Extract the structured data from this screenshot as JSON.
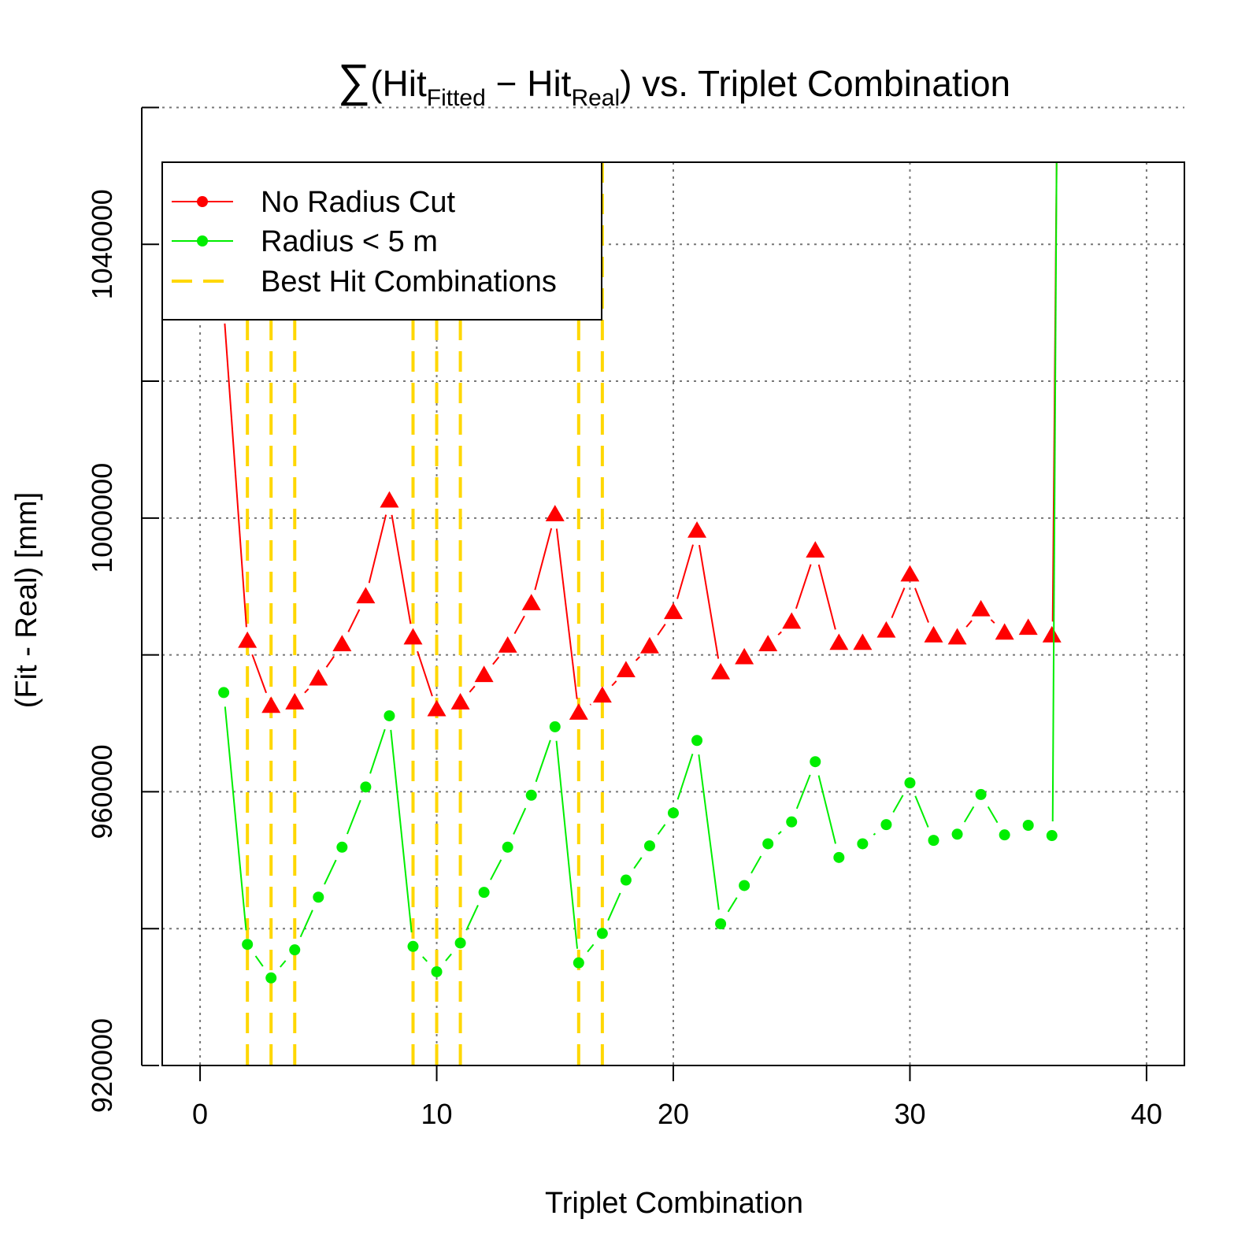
{
  "title": {
    "sigma": "∑",
    "open": "(Hit",
    "sub1": "Fitted",
    "minus": " − Hit",
    "sub2": "Real",
    "close": ") vs. Triplet Combination"
  },
  "chart_data": {
    "type": "line",
    "xlabel": "Triplet Combination",
    "ylabel": "(Fit - Real) [mm]",
    "xlim": [
      -1.6,
      41.6
    ],
    "ylim": [
      920000,
      1052000
    ],
    "x_ticks": [
      0,
      10,
      20,
      30,
      40
    ],
    "x_tick_labels": [
      "0",
      "10",
      "20",
      "30",
      "40"
    ],
    "y_ticks": [
      920000,
      940000,
      960000,
      980000,
      1000000,
      1020000,
      1040000,
      1060000
    ],
    "y_tick_labels": [
      "920000",
      "",
      "960000",
      "",
      "1000000",
      "",
      "1040000",
      ""
    ],
    "grid": true,
    "legend": {
      "position": "top-left",
      "entries": [
        "No Radius Cut",
        "Radius < 5 m",
        "Best Hit Combinations"
      ]
    },
    "x": [
      1,
      2,
      3,
      4,
      5,
      6,
      7,
      8,
      9,
      10,
      11,
      12,
      13,
      14,
      15,
      16,
      17,
      18,
      19,
      20,
      21,
      22,
      23,
      24,
      25,
      26,
      27,
      28,
      29,
      30,
      31,
      32,
      33,
      34,
      35,
      36
    ],
    "series": [
      {
        "name": "No Radius Cut",
        "color": "#ff0000",
        "marker": "triangle",
        "values": [
          1030500,
          982000,
          972500,
          973000,
          976500,
          981500,
          988500,
          1002500,
          982500,
          972000,
          973000,
          977000,
          981300,
          987500,
          1000500,
          971500,
          974000,
          977700,
          981200,
          986200,
          998100,
          977400,
          979600,
          981500,
          984800,
          995200,
          981700,
          981700,
          983500,
          991700,
          982800,
          982500,
          986600,
          983200,
          983900,
          982800
        ]
      },
      {
        "name": "Radius < 5 m",
        "color": "#00ee00",
        "marker": "circle",
        "values": [
          974500,
          937700,
          932800,
          936900,
          944600,
          951900,
          960700,
          971100,
          937400,
          933700,
          937900,
          945300,
          951900,
          959500,
          969500,
          935000,
          939300,
          947100,
          952100,
          956900,
          967500,
          940700,
          946300,
          952400,
          955600,
          964400,
          950400,
          952400,
          955200,
          961300,
          952900,
          953800,
          959600,
          953700,
          955100,
          953600
        ]
      }
    ],
    "best_hit_combinations": [
      2,
      3,
      4,
      9,
      10,
      11,
      16,
      17
    ],
    "best_hit_color": "#ffd700"
  }
}
